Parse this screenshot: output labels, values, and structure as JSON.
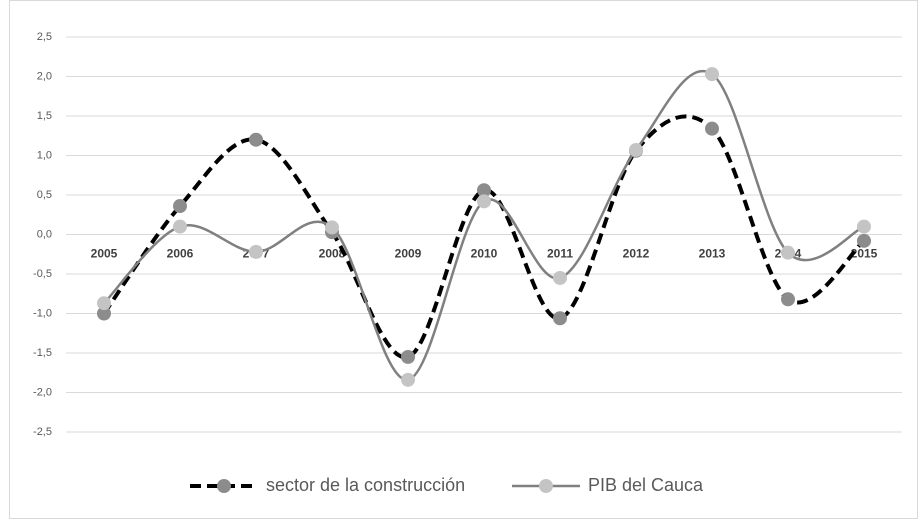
{
  "chart_data": {
    "type": "line",
    "categories": [
      "2005",
      "2006",
      "2007",
      "2008",
      "2009",
      "2010",
      "2011",
      "2012",
      "2013",
      "2014",
      "2015"
    ],
    "series": [
      {
        "name": "sector de la construcción",
        "color": "#000000",
        "marker_color": "#8c8c8c",
        "dashed": true,
        "values": [
          -1.0,
          0.36,
          1.2,
          0.03,
          -1.55,
          0.56,
          -1.06,
          1.06,
          1.34,
          -0.82,
          -0.08
        ]
      },
      {
        "name": "PIB del Cauca",
        "color": "#808080",
        "marker_color": "#c4c4c4",
        "dashed": false,
        "values": [
          -0.87,
          0.1,
          -0.22,
          0.09,
          -1.84,
          0.42,
          -0.55,
          1.07,
          2.03,
          -0.23,
          0.1
        ]
      }
    ],
    "ylim": [
      -2.5,
      2.5
    ],
    "yticks": [
      {
        "value": -2.5,
        "label": "-2,5"
      },
      {
        "value": -2.0,
        "label": "-2,0"
      },
      {
        "value": -1.5,
        "label": "-1,5"
      },
      {
        "value": -1.0,
        "label": "-1,0"
      },
      {
        "value": -0.5,
        "label": "-0,5"
      },
      {
        "value": 0,
        "label": "0,0"
      },
      {
        "value": 0.5,
        "label": "0,5"
      },
      {
        "value": 1.0,
        "label": "1,0"
      },
      {
        "value": 1.5,
        "label": "1,5"
      },
      {
        "value": 2.0,
        "label": "2,0"
      },
      {
        "value": 2.5,
        "label": "2,5"
      }
    ],
    "grid": true,
    "smooth": true,
    "legend": "bottom"
  }
}
